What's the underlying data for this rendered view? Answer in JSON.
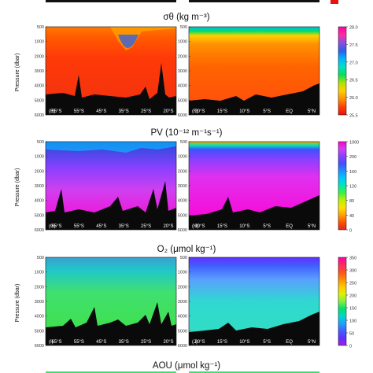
{
  "figure": {
    "panel_titles": [
      "σθ (kg m⁻³)",
      "PV (10⁻¹² m⁻¹s⁻¹)",
      "O₂ (μmol kg⁻¹)",
      "AOU (μmol kg⁻¹)"
    ]
  },
  "chart_data": [
    {
      "type": "heatmap",
      "title": "σθ (kg m⁻³)",
      "ylabel": "Pressure (dbar)",
      "ylim": [
        6000,
        0
      ],
      "yticks": [
        "500",
        "1000",
        "2000",
        "3000",
        "4000",
        "5000",
        "6000"
      ],
      "panels": [
        {
          "label": "(E)",
          "xticks": [
            "65°S",
            "55°S",
            "45°S",
            "35°S",
            "25°S",
            "20°S"
          ]
        },
        {
          "label": "(F)",
          "xticks": [
            "20°S",
            "15°S",
            "10°S",
            "5°S",
            "EQ",
            "5°N"
          ]
        }
      ],
      "colorbar": {
        "ticks": [
          28.0,
          27.5,
          27.0,
          26.5,
          26.0,
          25.5
        ],
        "range": [
          25.5,
          28.0
        ],
        "colors": [
          "#ff00a8",
          "#ff2da0",
          "#8a4fe0",
          "#2a5fe8",
          "#00b4ff",
          "#00e0c0",
          "#00e060",
          "#b0e000",
          "#ffd000",
          "#ff9000",
          "#ff4000",
          "#e81010"
        ]
      }
    },
    {
      "type": "heatmap",
      "title": "PV (10⁻¹² m⁻¹s⁻¹)",
      "ylabel": "Pressure (dbar)",
      "ylim": [
        6000,
        0
      ],
      "yticks": [
        "500",
        "1000",
        "2000",
        "3000",
        "4000",
        "5000",
        "6000"
      ],
      "panels": [
        {
          "label": "(G)",
          "xticks": [
            "65°S",
            "55°S",
            "45°S",
            "35°S",
            "25°S",
            "20°S"
          ]
        },
        {
          "label": "(H)",
          "xticks": [
            "20°S",
            "15°S",
            "10°S",
            "5°S",
            "EQ",
            "5°N"
          ]
        }
      ],
      "colorbar": {
        "ticks": [
          1000,
          200,
          160,
          120,
          80,
          40,
          0
        ],
        "range": [
          0,
          1000
        ],
        "colors": [
          "#ff00d0",
          "#d040f0",
          "#8a40ff",
          "#4050ff",
          "#2090ff",
          "#00c8ff",
          "#00e8b0",
          "#40f040",
          "#c0f000",
          "#ffe000",
          "#ffa000",
          "#ff5000",
          "#e82020"
        ]
      }
    },
    {
      "type": "heatmap",
      "title": "O₂ (μmol kg⁻¹)",
      "ylabel": "Pressure (dbar)",
      "ylim": [
        6000,
        0
      ],
      "yticks": [
        "500",
        "1000",
        "2000",
        "3000",
        "4000",
        "5000",
        "6000"
      ],
      "panels": [
        {
          "label": "(I)",
          "xticks": [
            "65°S",
            "55°S",
            "45°S",
            "35°S",
            "25°S",
            "20°S"
          ]
        },
        {
          "label": "(J)",
          "xticks": [
            "20°S",
            "15°S",
            "10°S",
            "5°S",
            "EQ",
            "5°N"
          ]
        }
      ],
      "colorbar": {
        "ticks": [
          350,
          300,
          250,
          200,
          150,
          100,
          50,
          0
        ],
        "range": [
          0,
          350
        ],
        "colors": [
          "#ff00b0",
          "#ff2a60",
          "#ff5020",
          "#ff8c00",
          "#ffc800",
          "#e0f000",
          "#80f040",
          "#00e070",
          "#00d8c8",
          "#20a0ff",
          "#4060ff",
          "#6030ff",
          "#a020e0"
        ]
      }
    }
  ],
  "bottom_caption": "AOU (μmol kg⁻¹)"
}
